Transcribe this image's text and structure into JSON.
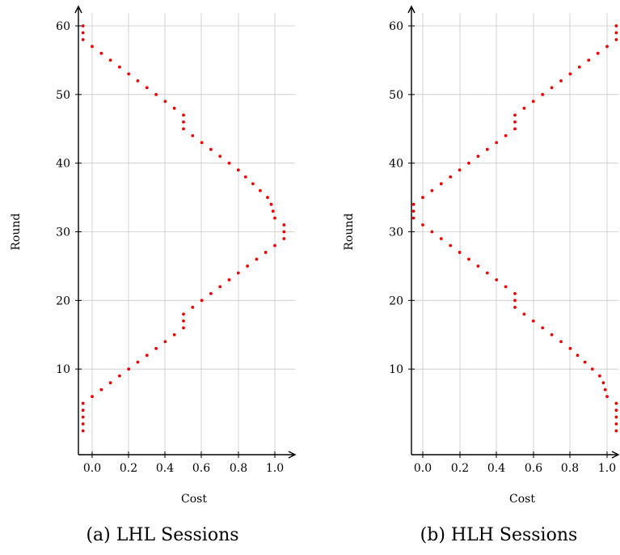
{
  "chart_data": [
    {
      "type": "scatter",
      "caption": "(a) LHL Sessions",
      "xlabel": "Cost",
      "ylabel": "Round",
      "xlim": [
        -0.1,
        1.1
      ],
      "ylim": [
        0,
        61
      ],
      "x_ticks": [
        "0.0",
        "0.2",
        "0.4",
        "0.6",
        "0.8",
        "1.0"
      ],
      "y_ticks": [
        "10",
        "20",
        "30",
        "40",
        "50",
        "60"
      ],
      "grid": true,
      "point_color": "#ee0000",
      "series": [
        {
          "x": [
            -0.05,
            -0.05,
            -0.05,
            -0.05,
            -0.05,
            0,
            0.05,
            0.1,
            0.15,
            0.2,
            0.25,
            0.3,
            0.35,
            0.4,
            0.45,
            0.5,
            0.5,
            0.5,
            0.55,
            0.6,
            0.65,
            0.7,
            0.75,
            0.8,
            0.85,
            0.9,
            0.95,
            1.0,
            1.05,
            1.05,
            1.05,
            1.0,
            0.99,
            0.98,
            0.96,
            0.92,
            0.88,
            0.84,
            0.8,
            0.75,
            0.7,
            0.65,
            0.6,
            0.55,
            0.5,
            0.5,
            0.5,
            0.45,
            0.4,
            0.35,
            0.3,
            0.25,
            0.2,
            0.15,
            0.1,
            0.05,
            0,
            -0.05,
            -0.05,
            -0.05
          ],
          "y": [
            1,
            2,
            3,
            4,
            5,
            6,
            7,
            8,
            9,
            10,
            11,
            12,
            13,
            14,
            15,
            16,
            17,
            18,
            19,
            20,
            21,
            22,
            23,
            24,
            25,
            26,
            27,
            28,
            29,
            30,
            31,
            32,
            33,
            34,
            35,
            36,
            37,
            38,
            39,
            40,
            41,
            42,
            43,
            44,
            45,
            46,
            47,
            48,
            49,
            50,
            51,
            52,
            53,
            54,
            55,
            56,
            57,
            58,
            59,
            60
          ]
        }
      ]
    },
    {
      "type": "scatter",
      "caption": "(b) HLH Sessions",
      "xlabel": "Cost",
      "ylabel": "Round",
      "xlim": [
        -0.1,
        1.05
      ],
      "ylim": [
        0,
        61
      ],
      "x_ticks": [
        "0.0",
        "0.2",
        "0.4",
        "0.6",
        "0.8",
        "1.0"
      ],
      "y_ticks": [
        "10",
        "20",
        "30",
        "40",
        "50",
        "60"
      ],
      "grid": true,
      "point_color": "#ee0000",
      "series": [
        {
          "x": [
            1.05,
            1.05,
            1.05,
            1.05,
            1.05,
            1.0,
            0.99,
            0.98,
            0.96,
            0.92,
            0.88,
            0.84,
            0.8,
            0.75,
            0.7,
            0.65,
            0.6,
            0.55,
            0.5,
            0.5,
            0.5,
            0.45,
            0.4,
            0.35,
            0.3,
            0.25,
            0.2,
            0.15,
            0.1,
            0.05,
            0,
            -0.05,
            -0.05,
            -0.05,
            0,
            0.05,
            0.1,
            0.15,
            0.2,
            0.25,
            0.3,
            0.35,
            0.4,
            0.45,
            0.5,
            0.5,
            0.5,
            0.55,
            0.6,
            0.65,
            0.7,
            0.75,
            0.8,
            0.85,
            0.9,
            0.95,
            1.0,
            1.05,
            1.05,
            1.05
          ],
          "y": [
            1,
            2,
            3,
            4,
            5,
            6,
            7,
            8,
            9,
            10,
            11,
            12,
            13,
            14,
            15,
            16,
            17,
            18,
            19,
            20,
            21,
            22,
            23,
            24,
            25,
            26,
            27,
            28,
            29,
            30,
            31,
            32,
            33,
            34,
            35,
            36,
            37,
            38,
            39,
            40,
            41,
            42,
            43,
            44,
            45,
            46,
            47,
            48,
            49,
            50,
            51,
            52,
            53,
            54,
            55,
            56,
            57,
            58,
            59,
            60
          ]
        }
      ]
    }
  ]
}
